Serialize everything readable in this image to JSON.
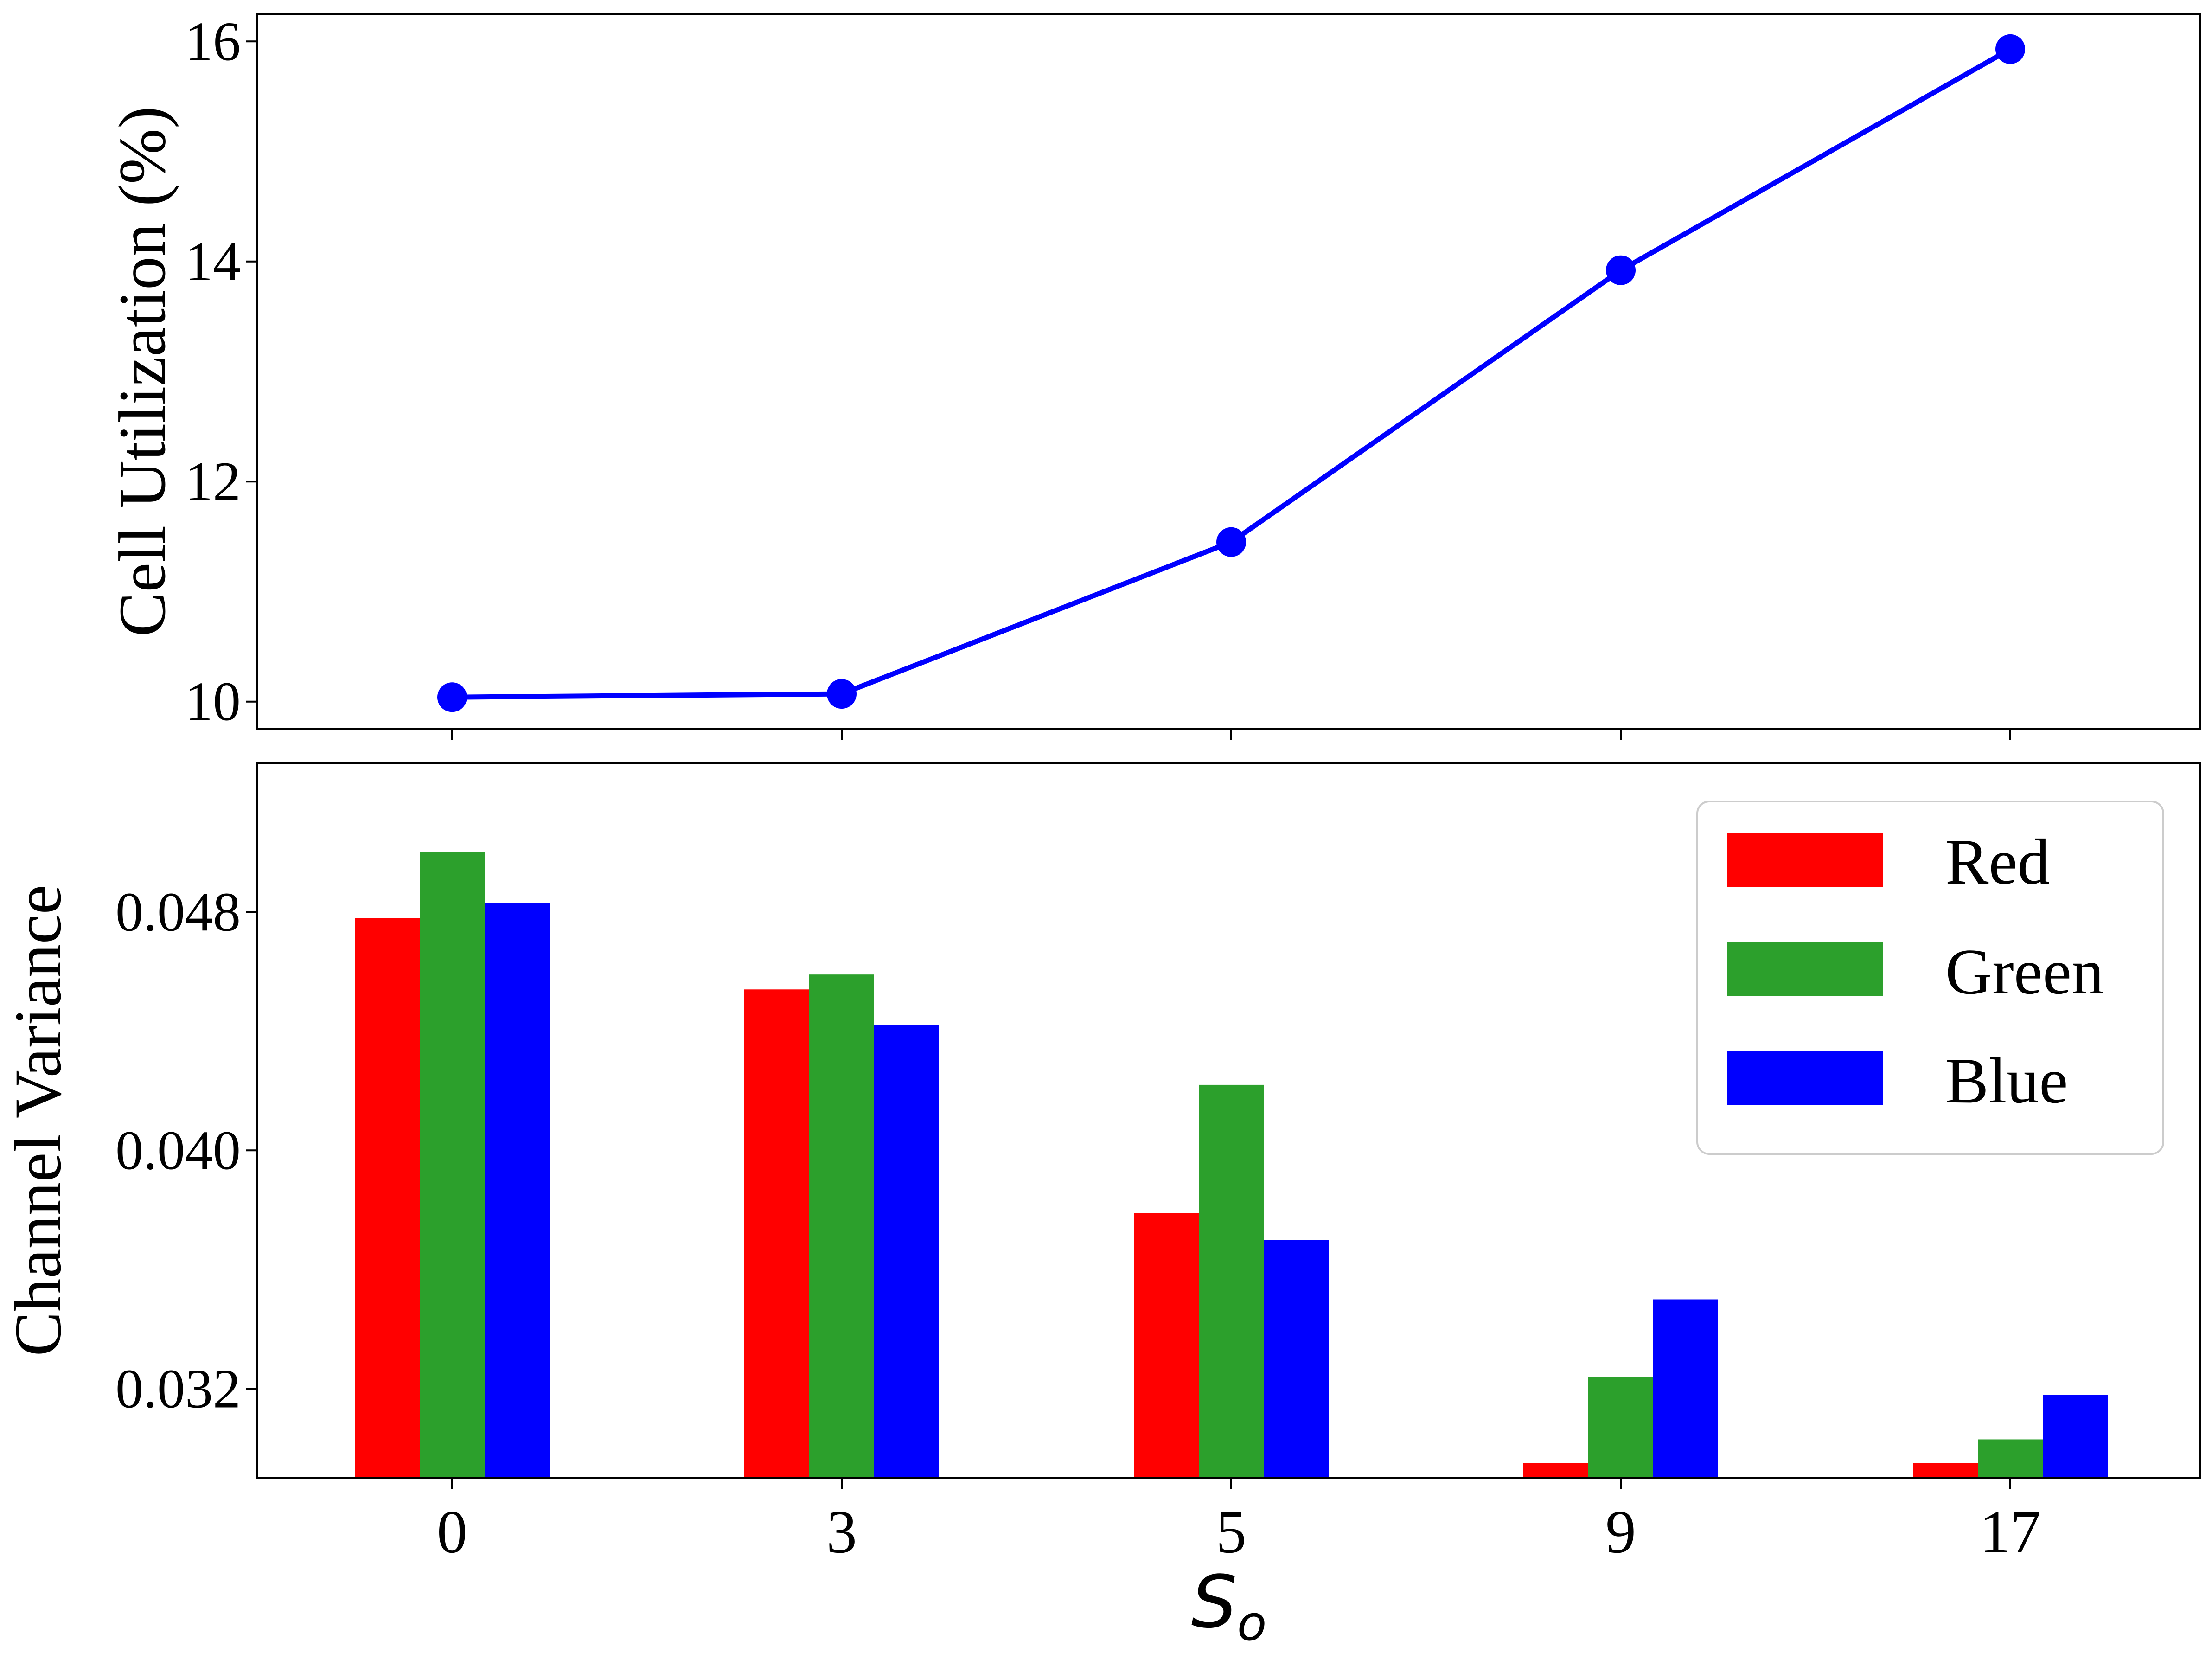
{
  "chart_data": [
    {
      "type": "line",
      "title": "",
      "xlabel": "",
      "ylabel": "Cell Utilization (%)",
      "x_categories": [
        "0",
        "3",
        "5",
        "9",
        "17"
      ],
      "ylim": [
        9.75,
        16.25
      ],
      "yticks": [
        10,
        12,
        14,
        16
      ],
      "ytick_labels": [
        "10",
        "12",
        "14",
        "16"
      ],
      "series": [
        {
          "color": "#0000ff",
          "values": [
            10.04,
            10.07,
            11.45,
            13.92,
            15.93
          ]
        }
      ],
      "marker": "circle",
      "grid": false,
      "legend": false
    },
    {
      "type": "bar",
      "title": "",
      "xlabel_main": "S",
      "xlabel_sub": "o",
      "ylabel": "Channel Variance",
      "categories": [
        "0",
        "3",
        "5",
        "9",
        "17"
      ],
      "ylim": [
        0.029,
        0.053
      ],
      "yticks": [
        0.032,
        0.04,
        0.048
      ],
      "ytick_labels": [
        "0.032",
        "0.040",
        "0.048"
      ],
      "series": [
        {
          "name": "Red",
          "color": "#ff0000",
          "values": [
            0.0478,
            0.0454,
            0.0379,
            0.0295,
            0.0295
          ]
        },
        {
          "name": "Green",
          "color": "#2ca02c",
          "values": [
            0.05,
            0.0459,
            0.0422,
            0.0324,
            0.0303
          ]
        },
        {
          "name": "Blue",
          "color": "#0000ff",
          "values": [
            0.0483,
            0.0442,
            0.037,
            0.035,
            0.0318
          ]
        }
      ],
      "grid": false,
      "legend_position": "top-right"
    }
  ]
}
